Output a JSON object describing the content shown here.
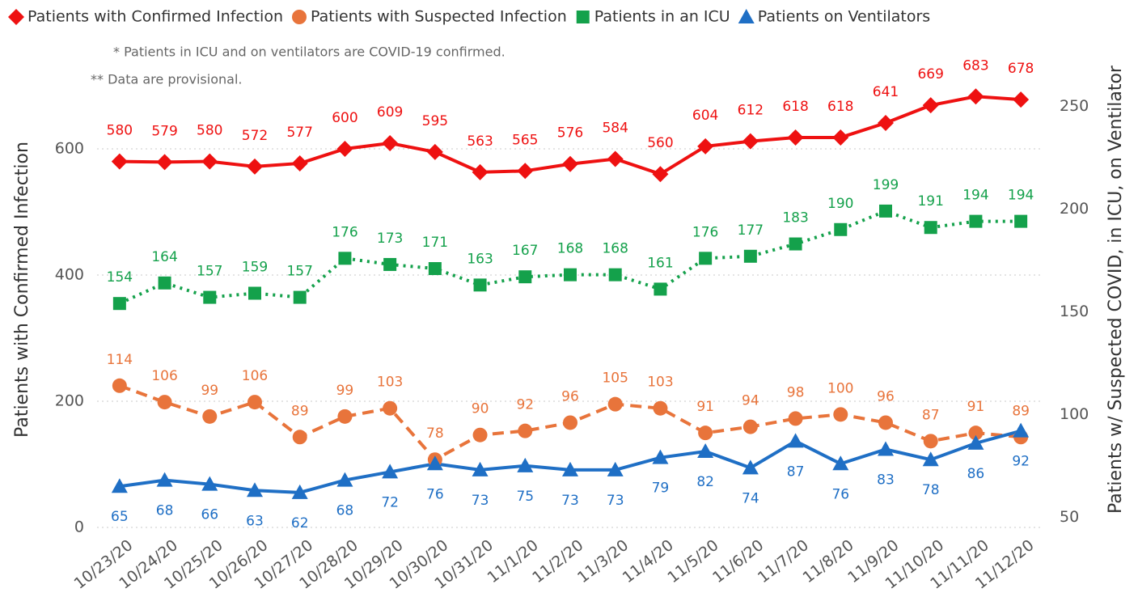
{
  "chart_data": {
    "type": "line",
    "notes": [
      "* Patients in ICU and on ventilators are COVID-19 confirmed.",
      "** Data are provisional."
    ],
    "y_label": "Patients with Confirmed Infection",
    "y2_label": "Patients w/ Suspected COVID, in ICU, on Ventilator",
    "categories": [
      "10/23/20",
      "10/24/20",
      "10/25/20",
      "10/26/20",
      "10/27/20",
      "10/28/20",
      "10/29/20",
      "10/30/20",
      "10/31/20",
      "11/1/20",
      "11/2/20",
      "11/3/20",
      "11/4/20",
      "11/5/20",
      "11/6/20",
      "11/7/20",
      "11/8/20",
      "11/9/20",
      "11/10/20",
      "11/11/20",
      "11/12/20"
    ],
    "ylim": [
      0,
      700
    ],
    "yticks": [
      0,
      200,
      400,
      600
    ],
    "y2lim": [
      45,
      260
    ],
    "y2ticks": [
      50,
      100,
      150,
      200,
      250
    ],
    "grid": true,
    "series": [
      {
        "name": "Patients with Confirmed Infection",
        "color": "#ee1111",
        "marker": "diamond",
        "line_style": "solid",
        "label_position": "above",
        "values": [
          580,
          579,
          580,
          572,
          577,
          600,
          609,
          595,
          563,
          565,
          576,
          584,
          560,
          604,
          612,
          618,
          618,
          641,
          669,
          683,
          678
        ]
      },
      {
        "name": "Patients with Suspected Infection",
        "color": "#e8743b",
        "marker": "circle",
        "line_style": "dashed",
        "axis": "y2",
        "label_position": "above",
        "values": [
          114,
          106,
          99,
          106,
          89,
          99,
          103,
          78,
          90,
          92,
          96,
          105,
          103,
          91,
          94,
          98,
          100,
          96,
          87,
          91,
          89
        ]
      },
      {
        "name": "Patients in an ICU",
        "color": "#14a14b",
        "marker": "square",
        "line_style": "dotted",
        "axis": "y2",
        "label_position": "above",
        "values": [
          154,
          164,
          157,
          159,
          157,
          176,
          173,
          171,
          163,
          167,
          168,
          168,
          161,
          176,
          177,
          183,
          190,
          199,
          191,
          194,
          194
        ]
      },
      {
        "name": "Patients on Ventilators",
        "color": "#1f6fc5",
        "marker": "triangle",
        "line_style": "solid",
        "axis": "y2",
        "label_position": "below",
        "values": [
          65,
          68,
          66,
          63,
          62,
          68,
          72,
          76,
          73,
          75,
          73,
          73,
          79,
          82,
          74,
          87,
          76,
          83,
          78,
          86,
          92
        ]
      }
    ]
  }
}
